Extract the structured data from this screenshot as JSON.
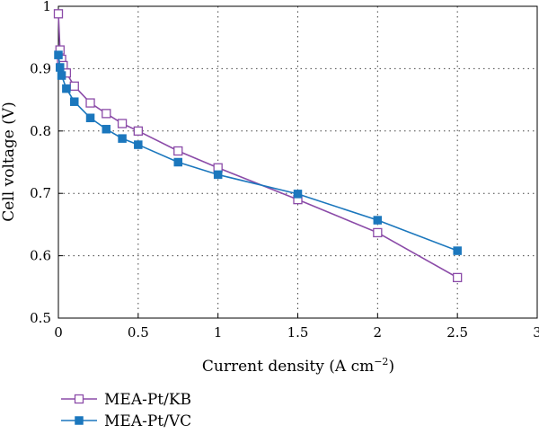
{
  "chart_data": {
    "type": "line",
    "title": "",
    "xlabel": "Current density (A cm",
    "xlabel_superscript": "−2",
    "xlabel_suffix": ")",
    "ylabel": "Cell voltage (V)",
    "xlim": [
      0,
      3
    ],
    "ylim": [
      0.5,
      1.0
    ],
    "x_ticks": [
      "0",
      "0.5",
      "1",
      "1.5",
      "2",
      "2.5",
      "3"
    ],
    "y_ticks": [
      "0.5",
      "0.6",
      "0.7",
      "0.8",
      "0.9",
      "1"
    ],
    "grid": true,
    "legend_position": "bottom-left",
    "series": [
      {
        "name": "MEA-Pt/KB",
        "color": "#8B4BA8",
        "marker": "open-square",
        "x": [
          0.0,
          0.01,
          0.02,
          0.03,
          0.05,
          0.1,
          0.2,
          0.3,
          0.4,
          0.5,
          0.75,
          1.0,
          1.5,
          2.0,
          2.5
        ],
        "y": [
          0.988,
          0.93,
          0.915,
          0.905,
          0.893,
          0.872,
          0.845,
          0.828,
          0.812,
          0.8,
          0.768,
          0.741,
          0.69,
          0.637,
          0.565
        ]
      },
      {
        "name": "MEA-Pt/VC",
        "color": "#1B77BD",
        "marker": "filled-square",
        "x": [
          0.0,
          0.01,
          0.02,
          0.05,
          0.1,
          0.2,
          0.3,
          0.4,
          0.5,
          0.75,
          1.0,
          1.5,
          2.0,
          2.5
        ],
        "y": [
          0.922,
          0.902,
          0.889,
          0.868,
          0.847,
          0.821,
          0.803,
          0.788,
          0.778,
          0.75,
          0.73,
          0.699,
          0.657,
          0.608
        ]
      }
    ]
  }
}
